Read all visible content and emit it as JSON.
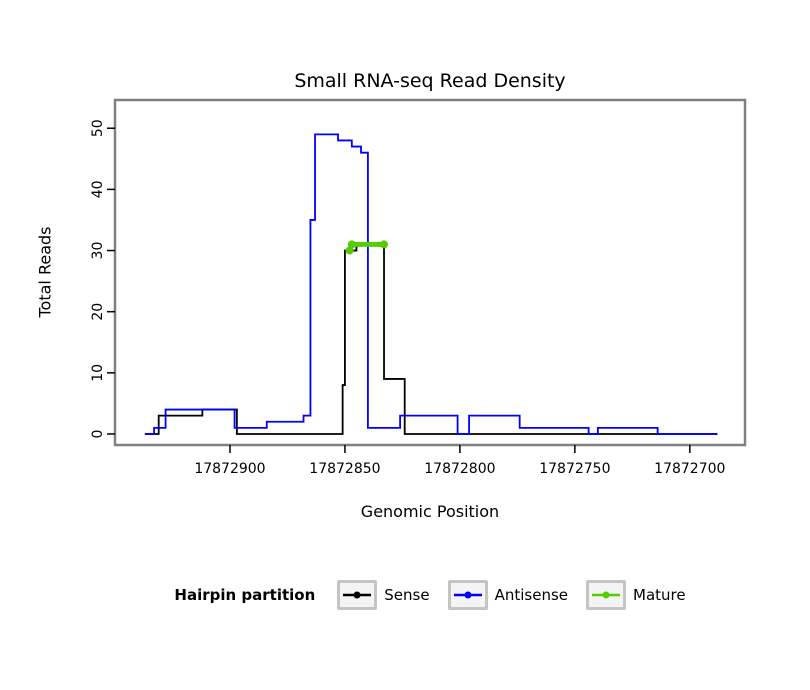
{
  "chart_data": {
    "type": "line",
    "title": "Small RNA-seq Read Density",
    "xlabel": "Genomic Position",
    "ylabel": "Total Reads",
    "x_axis_reversed": true,
    "x_domain": [
      17872950,
      17872676
    ],
    "y_domain": [
      0,
      52
    ],
    "x_ticks": [
      17872900,
      17872850,
      17872800,
      17872750,
      17872700
    ],
    "y_ticks": [
      0,
      10,
      20,
      30,
      40,
      50
    ],
    "grid": "off",
    "panel_border_color": "#808080",
    "legend": {
      "title": "Hairpin partition",
      "position": "bottom"
    },
    "series": [
      {
        "name": "Sense",
        "color": "#000000",
        "style": "step",
        "points": [
          [
            17872937,
            0
          ],
          [
            17872931,
            3
          ],
          [
            17872912,
            4
          ],
          [
            17872897,
            0
          ],
          [
            17872851,
            8
          ],
          [
            17872850,
            30
          ],
          [
            17872845,
            31
          ],
          [
            17872833,
            9
          ],
          [
            17872824,
            0
          ],
          [
            17872688,
            0
          ]
        ]
      },
      {
        "name": "Antisense",
        "color": "#0000FF",
        "style": "step",
        "points": [
          [
            17872937,
            0
          ],
          [
            17872933,
            1
          ],
          [
            17872928,
            4
          ],
          [
            17872898,
            1
          ],
          [
            17872884,
            2
          ],
          [
            17872868,
            3
          ],
          [
            17872865,
            35
          ],
          [
            17872863,
            49
          ],
          [
            17872853,
            48
          ],
          [
            17872847,
            47
          ],
          [
            17872843,
            46
          ],
          [
            17872840,
            1
          ],
          [
            17872826,
            3
          ],
          [
            17872801,
            0
          ],
          [
            17872796,
            3
          ],
          [
            17872774,
            1
          ],
          [
            17872744,
            0
          ],
          [
            17872740,
            1
          ],
          [
            17872714,
            0
          ],
          [
            17872688,
            0
          ]
        ]
      },
      {
        "name": "Mature",
        "color": "#55CC00",
        "style": "segment",
        "linewidth": 5,
        "points": [
          [
            17872848,
            30
          ],
          [
            17872847,
            31
          ],
          [
            17872833,
            31
          ]
        ]
      }
    ]
  }
}
